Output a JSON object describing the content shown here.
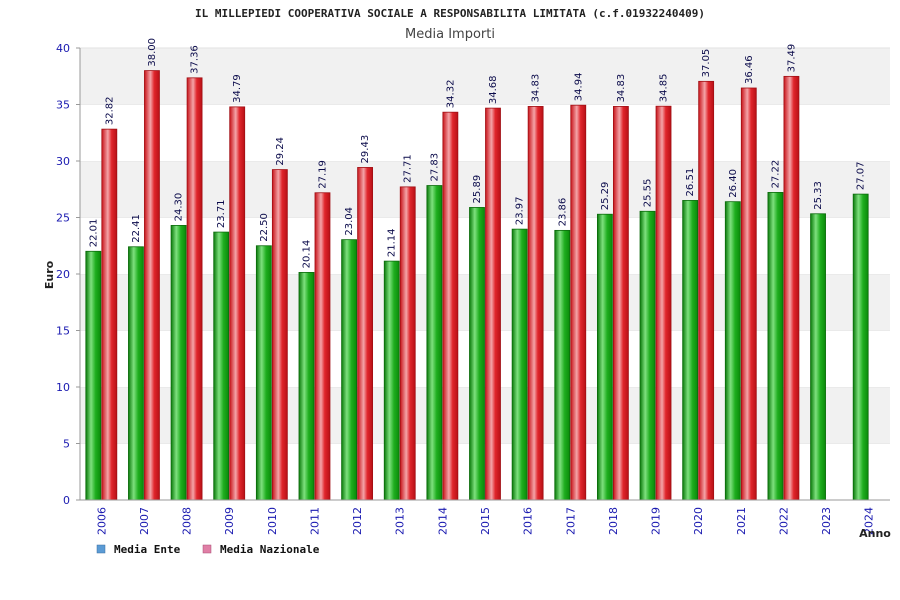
{
  "chart_data": {
    "type": "bar",
    "title": "IL MILLEPIEDI COOPERATIVA SOCIALE A RESPONSABILITA LIMITATA (c.f.01932240409)",
    "subtitle": "Media Importi",
    "xlabel": "Anno",
    "ylabel": "Euro",
    "ylim": [
      0,
      40
    ],
    "yticks": [
      0,
      5,
      10,
      15,
      20,
      25,
      30,
      35,
      40
    ],
    "categories": [
      "2006",
      "2007",
      "2008",
      "2009",
      "2010",
      "2011",
      "2012",
      "2013",
      "2014",
      "2015",
      "2016",
      "2017",
      "2018",
      "2019",
      "2020",
      "2021",
      "2022",
      "2023",
      "2024"
    ],
    "series": [
      {
        "name": "Media Ente",
        "color": "#1fae1f",
        "legend_color": "#5b9bd5",
        "values": [
          22.01,
          22.41,
          24.3,
          23.71,
          22.5,
          20.14,
          23.04,
          21.14,
          27.83,
          25.89,
          23.97,
          23.86,
          25.29,
          25.55,
          26.51,
          26.4,
          27.22,
          25.33,
          27.07
        ],
        "labels": [
          "22.01",
          "22.41",
          "24.30",
          "23.71",
          "22.50",
          "20.14",
          "23.04",
          "21.14",
          "27.83",
          "25.89",
          "23.97",
          "23.86",
          "25.29",
          "25.55",
          "26.51",
          "26.40",
          "27.22",
          "25.33",
          "27.07"
        ]
      },
      {
        "name": "Media Nazionale",
        "color": "#e0262c",
        "legend_color": "#e07fa6",
        "values": [
          32.82,
          38.0,
          37.36,
          34.79,
          29.24,
          27.19,
          29.43,
          27.71,
          34.32,
          34.68,
          34.83,
          34.94,
          34.83,
          34.85,
          37.05,
          36.46,
          37.49,
          null,
          null
        ],
        "labels": [
          "32.82",
          "38.00",
          "37.36",
          "34.79",
          "29.24",
          "27.19",
          "29.43",
          "27.71",
          "34.32",
          "34.68",
          "34.83",
          "34.94",
          "34.83",
          "34.85",
          "37.05",
          "36.46",
          "37.49",
          null,
          null
        ]
      }
    ],
    "legend_position": "bottom-left",
    "grid": true
  }
}
